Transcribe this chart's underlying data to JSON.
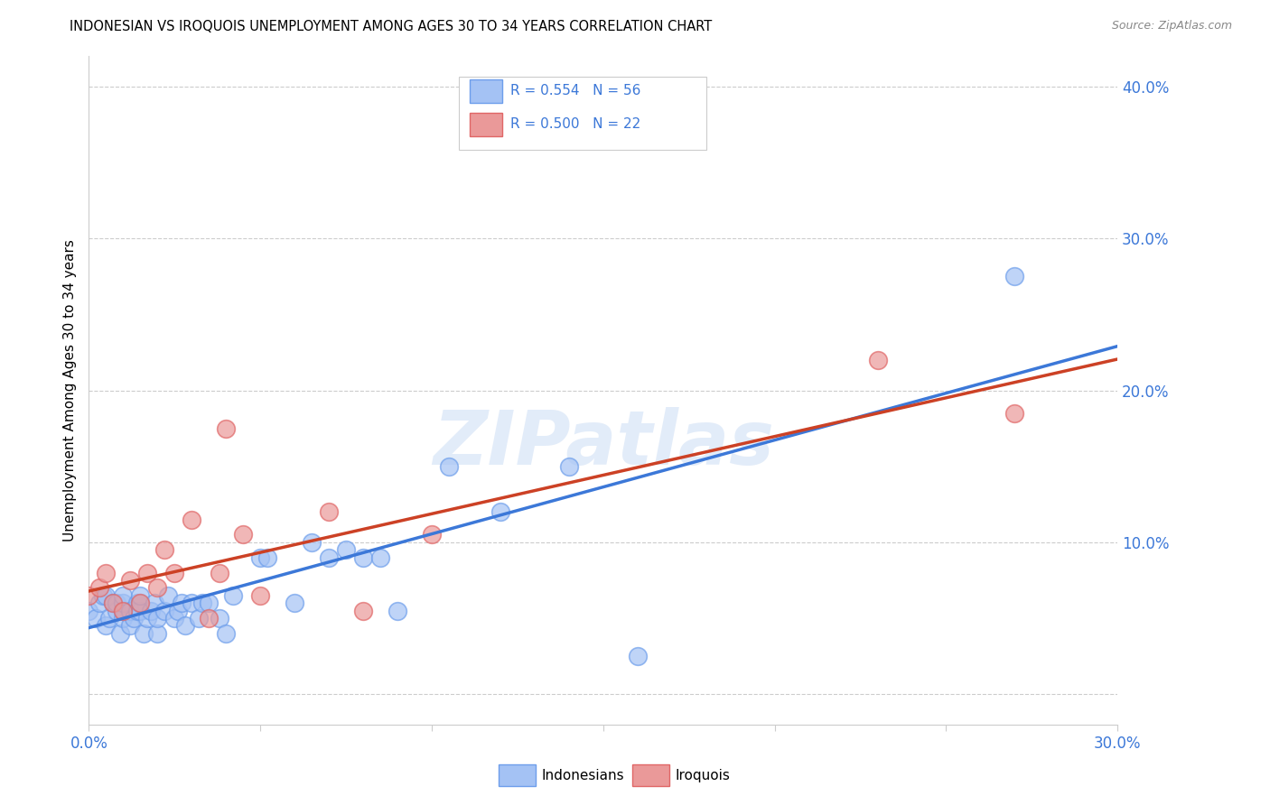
{
  "title": "INDONESIAN VS IROQUOIS UNEMPLOYMENT AMONG AGES 30 TO 34 YEARS CORRELATION CHART",
  "source": "Source: ZipAtlas.com",
  "ylabel": "Unemployment Among Ages 30 to 34 years",
  "xlim": [
    0.0,
    0.3
  ],
  "ylim": [
    -0.02,
    0.42
  ],
  "xticks": [
    0.0,
    0.05,
    0.1,
    0.15,
    0.2,
    0.25,
    0.3
  ],
  "xticklabels": [
    "0.0%",
    "",
    "",
    "",
    "",
    "",
    "30.0%"
  ],
  "yticks": [
    0.0,
    0.1,
    0.2,
    0.3,
    0.4
  ],
  "yticklabels": [
    "",
    "10.0%",
    "20.0%",
    "30.0%",
    "40.0%"
  ],
  "indonesian_color": "#a4c2f4",
  "iroquois_color": "#ea9999",
  "indonesian_edge_color": "#6d9eeb",
  "iroquois_edge_color": "#e06666",
  "indonesian_line_color": "#3c78d8",
  "iroquois_line_color": "#cc4125",
  "R_indonesian": 0.554,
  "N_indonesian": 56,
  "R_iroquois": 0.5,
  "N_iroquois": 22,
  "watermark": "ZIPatlas",
  "indonesian_x": [
    0.0,
    0.002,
    0.003,
    0.004,
    0.005,
    0.005,
    0.006,
    0.007,
    0.008,
    0.008,
    0.009,
    0.01,
    0.01,
    0.01,
    0.01,
    0.012,
    0.012,
    0.013,
    0.014,
    0.014,
    0.015,
    0.015,
    0.015,
    0.016,
    0.017,
    0.018,
    0.019,
    0.02,
    0.02,
    0.022,
    0.023,
    0.025,
    0.026,
    0.027,
    0.028,
    0.03,
    0.032,
    0.033,
    0.035,
    0.038,
    0.04,
    0.042,
    0.05,
    0.052,
    0.06,
    0.065,
    0.07,
    0.075,
    0.08,
    0.085,
    0.09,
    0.105,
    0.12,
    0.14,
    0.16,
    0.27
  ],
  "indonesian_y": [
    0.055,
    0.05,
    0.06,
    0.065,
    0.045,
    0.065,
    0.05,
    0.06,
    0.055,
    0.06,
    0.04,
    0.05,
    0.055,
    0.06,
    0.065,
    0.045,
    0.055,
    0.05,
    0.06,
    0.055,
    0.055,
    0.06,
    0.065,
    0.04,
    0.05,
    0.055,
    0.06,
    0.04,
    0.05,
    0.055,
    0.065,
    0.05,
    0.055,
    0.06,
    0.045,
    0.06,
    0.05,
    0.06,
    0.06,
    0.05,
    0.04,
    0.065,
    0.09,
    0.09,
    0.06,
    0.1,
    0.09,
    0.095,
    0.09,
    0.09,
    0.055,
    0.15,
    0.12,
    0.15,
    0.025,
    0.275
  ],
  "iroquois_x": [
    0.0,
    0.003,
    0.005,
    0.007,
    0.01,
    0.012,
    0.015,
    0.017,
    0.02,
    0.022,
    0.025,
    0.03,
    0.035,
    0.038,
    0.04,
    0.045,
    0.05,
    0.07,
    0.08,
    0.1,
    0.23,
    0.27
  ],
  "iroquois_y": [
    0.065,
    0.07,
    0.08,
    0.06,
    0.055,
    0.075,
    0.06,
    0.08,
    0.07,
    0.095,
    0.08,
    0.115,
    0.05,
    0.08,
    0.175,
    0.105,
    0.065,
    0.12,
    0.055,
    0.105,
    0.22,
    0.185
  ]
}
